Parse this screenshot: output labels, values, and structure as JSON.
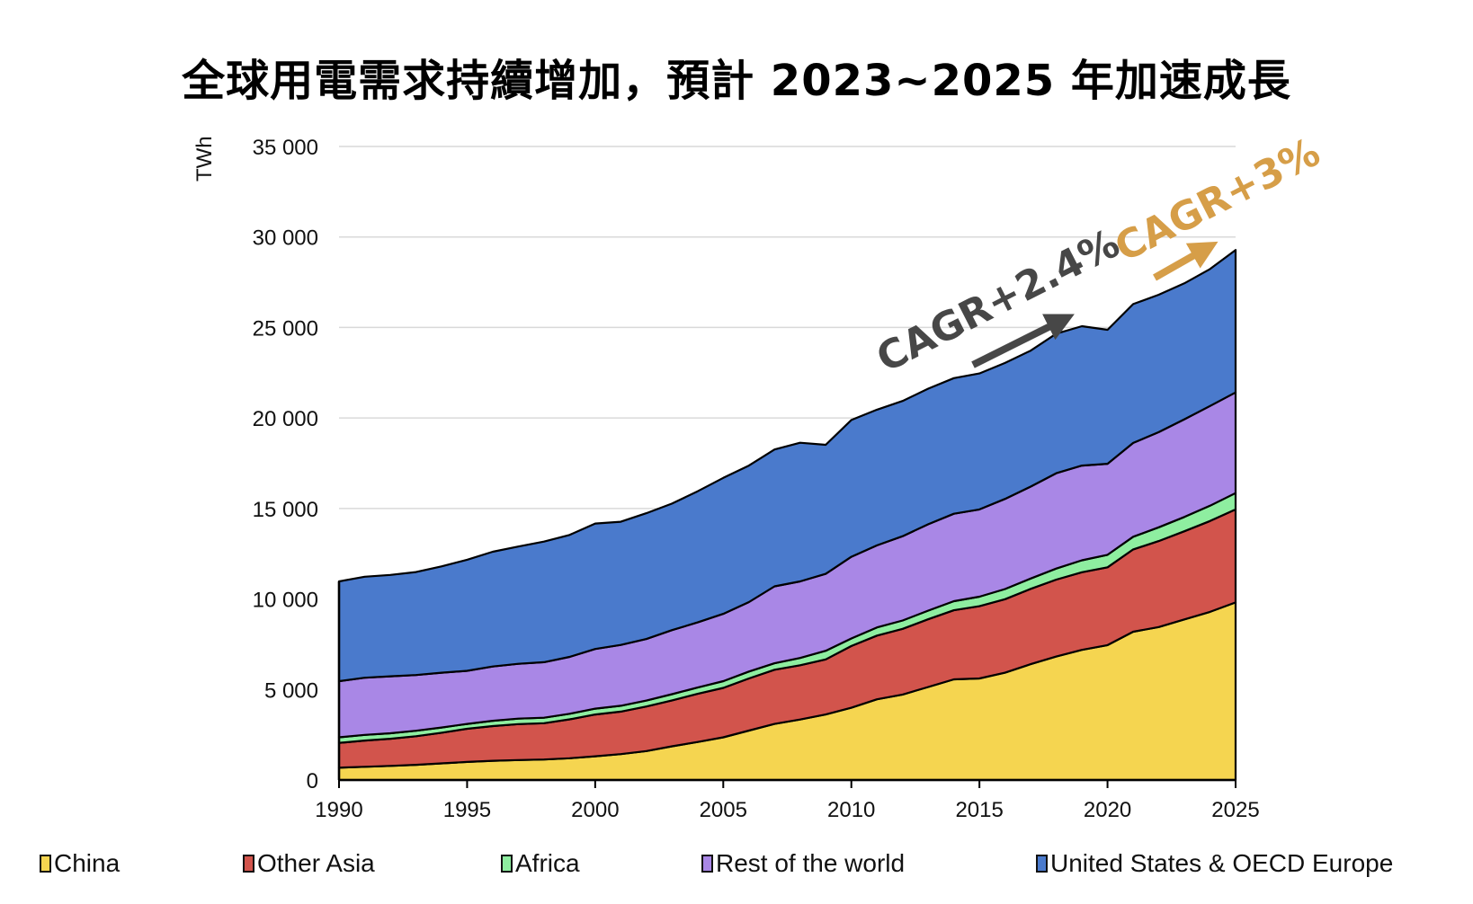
{
  "chart_data": {
    "type": "area",
    "stacked": true,
    "title": "全球用電需求持續增加，預計 2023~2025 年加速成長",
    "xlabel": "",
    "ylabel": "TWh",
    "ylim": [
      0,
      35000
    ],
    "xlim": [
      1990,
      2025
    ],
    "grid": true,
    "legend_position": "bottom",
    "y_ticks": [
      0,
      5000,
      10000,
      15000,
      20000,
      25000,
      30000,
      35000
    ],
    "y_tick_labels": [
      "0",
      "5 000",
      "10 000",
      "15 000",
      "20 000",
      "25 000",
      "30 000",
      "35 000"
    ],
    "x_ticks": [
      1990,
      1995,
      2000,
      2005,
      2010,
      2015,
      2020,
      2025
    ],
    "x_tick_labels": [
      "1990",
      "1995",
      "2000",
      "2005",
      "2010",
      "2015",
      "2020",
      "2025"
    ],
    "x": [
      1990,
      1991,
      1992,
      1993,
      1994,
      1995,
      1996,
      1997,
      1998,
      1999,
      2000,
      2001,
      2002,
      2003,
      2004,
      2005,
      2006,
      2007,
      2008,
      2009,
      2010,
      2011,
      2012,
      2013,
      2014,
      2015,
      2016,
      2017,
      2018,
      2019,
      2020,
      2021,
      2022,
      2023,
      2024,
      2025
    ],
    "series": [
      {
        "name": "China",
        "color": "#F5D550",
        "values": [
          680,
          730,
          780,
          840,
          920,
          1000,
          1060,
          1100,
          1130,
          1200,
          1310,
          1430,
          1600,
          1860,
          2100,
          2360,
          2730,
          3100,
          3340,
          3620,
          3990,
          4460,
          4720,
          5140,
          5560,
          5610,
          5930,
          6400,
          6820,
          7190,
          7450,
          8190,
          8450,
          8870,
          9290,
          9810
        ]
      },
      {
        "name": "Other Asia",
        "color": "#D2544C",
        "values": [
          1370,
          1450,
          1500,
          1580,
          1690,
          1830,
          1920,
          1990,
          2010,
          2150,
          2310,
          2350,
          2460,
          2540,
          2660,
          2730,
          2880,
          2990,
          3000,
          3040,
          3410,
          3520,
          3630,
          3740,
          3820,
          3990,
          4060,
          4160,
          4250,
          4290,
          4300,
          4550,
          4750,
          4870,
          5020,
          5140
        ]
      },
      {
        "name": "Africa",
        "color": "#8EEEA0",
        "values": [
          310,
          310,
          300,
          300,
          290,
          270,
          290,
          300,
          300,
          310,
          320,
          320,
          330,
          340,
          350,
          370,
          380,
          360,
          400,
          480,
          420,
          450,
          460,
          480,
          500,
          530,
          560,
          570,
          610,
          660,
          690,
          700,
          760,
          790,
          840,
          900
        ]
      },
      {
        "name": "Rest of the world",
        "color": "#A987E6",
        "values": [
          3100,
          3160,
          3150,
          3080,
          3030,
          2930,
          3000,
          3030,
          3070,
          3140,
          3300,
          3360,
          3400,
          3540,
          3600,
          3720,
          3840,
          4250,
          4230,
          4250,
          4510,
          4530,
          4660,
          4770,
          4830,
          4820,
          4980,
          5080,
          5270,
          5230,
          5030,
          5180,
          5260,
          5400,
          5510,
          5560
        ]
      },
      {
        "name": "United States & OECD Europe",
        "color": "#4A7ACC",
        "values": [
          5510,
          5580,
          5600,
          5690,
          5870,
          6140,
          6340,
          6480,
          6660,
          6740,
          6930,
          6810,
          6950,
          6990,
          7240,
          7510,
          7540,
          7560,
          7660,
          7130,
          7560,
          7500,
          7470,
          7490,
          7490,
          7510,
          7510,
          7510,
          7710,
          7700,
          7400,
          7670,
          7590,
          7510,
          7570,
          7870
        ]
      }
    ],
    "annotations": [
      {
        "text": "CAGR+2.4%",
        "color": "#474747",
        "anchor_year_start": 2014.5,
        "anchor_year_end": 2018.5
      },
      {
        "text": "CAGR+3%",
        "color": "#D69E48",
        "anchor_year_start": 2022.5,
        "anchor_year_end": 2024.8
      }
    ]
  },
  "legend": [
    {
      "label": "China",
      "color": "#F5D550"
    },
    {
      "label": "Other Asia",
      "color": "#D2544C"
    },
    {
      "label": "Africa",
      "color": "#8EEEA0"
    },
    {
      "label": "Rest of the world",
      "color": "#A987E6"
    },
    {
      "label": "United States & OECD Europe",
      "color": "#4A7ACC"
    }
  ]
}
